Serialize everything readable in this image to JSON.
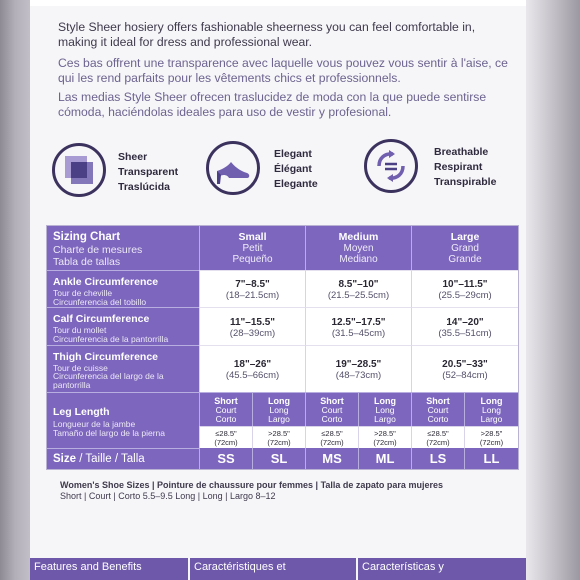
{
  "description": {
    "english": "Style Sheer hosiery offers fashionable sheerness you can feel comfortable in, making it ideal for dress and professional wear.",
    "french": "Ces bas offrent une transparence avec laquelle vous pouvez vous sentir à l'aise, ce qui les rend parfaits pour les vêtements chics et professionnels.",
    "spanish": "Las medias Style Sheer ofrecen traslucidez de moda con la que puede sentirse cómoda, haciéndolas ideales para uso de vestir y profesional."
  },
  "features": [
    {
      "icon": "sheer-squares-icon",
      "en": "Sheer",
      "fr": "Transparent",
      "es": "Traslúcida"
    },
    {
      "icon": "high-heel-shoe-icon",
      "en": "Elegant",
      "fr": "Élégant",
      "es": "Elegante"
    },
    {
      "icon": "breathable-arrows-icon",
      "en": "Breathable",
      "fr": "Respirant",
      "es": "Transpirable"
    }
  ],
  "sizing_chart": {
    "title_en": "Sizing Chart",
    "title_fr": "Charte de mesures",
    "title_es": "Tabla de tallas",
    "columns": [
      {
        "en": "Small",
        "fr": "Petit",
        "es": "Pequeño"
      },
      {
        "en": "Medium",
        "fr": "Moyen",
        "es": "Mediano"
      },
      {
        "en": "Large",
        "fr": "Grand",
        "es": "Grande"
      }
    ],
    "rows": [
      {
        "en": "Ankle Circumference",
        "fr": "Tour de cheville",
        "es": "Circunferencia del tobillo",
        "values": [
          {
            "in": "7\"–8.5\"",
            "cm": "(18–21.5cm)"
          },
          {
            "in": "8.5\"–10\"",
            "cm": "(21.5–25.5cm)"
          },
          {
            "in": "10\"–11.5\"",
            "cm": "(25.5–29cm)"
          }
        ]
      },
      {
        "en": "Calf Circumference",
        "fr": "Tour du mollet",
        "es": "Circunferencia de la pantorrilla",
        "values": [
          {
            "in": "11\"–15.5\"",
            "cm": "(28–39cm)"
          },
          {
            "in": "12.5\"–17.5\"",
            "cm": "(31.5–45cm)"
          },
          {
            "in": "14\"–20\"",
            "cm": "(35.5–51cm)"
          }
        ]
      },
      {
        "en": "Thigh Circumference",
        "fr": "Tour de cuisse",
        "es": "Circunferencia del largo de la pantorrilla",
        "values": [
          {
            "in": "18\"–26\"",
            "cm": "(45.5–66cm)"
          },
          {
            "in": "19\"–28.5\"",
            "cm": "(48–73cm)"
          },
          {
            "in": "20.5\"–33\"",
            "cm": "(52–84cm)"
          }
        ]
      }
    ],
    "leg_length": {
      "en": "Leg Length",
      "fr": "Longueur de la jambe",
      "es": "Tamaño del largo de la pierna",
      "short": {
        "en": "Short",
        "fr": "Court",
        "es": "Corto",
        "value": "≤28.5\"",
        "cm": "(72cm)"
      },
      "long": {
        "en": "Long",
        "fr": "Long",
        "es": "Largo",
        "value": ">28.5\"",
        "cm": "(72cm)"
      }
    },
    "size_row": {
      "label_en": "Size",
      "label_fr": "Taille",
      "label_es": "Talla",
      "codes": [
        "SS",
        "SL",
        "MS",
        "ML",
        "LS",
        "LL"
      ]
    }
  },
  "shoe_sizes": {
    "title": "Women's Shoe Sizes | Pointure de chaussure pour femmes | Talla de zapato para mujeres",
    "values": "Short | Court | Corto 5.5–9.5     Long | Long | Largo 8–12"
  },
  "features_bar": [
    "Features and Benefits",
    "Caractéristiques et",
    "Características y"
  ],
  "colors": {
    "accent": "#7d66bd",
    "dark": "#3c325e"
  }
}
